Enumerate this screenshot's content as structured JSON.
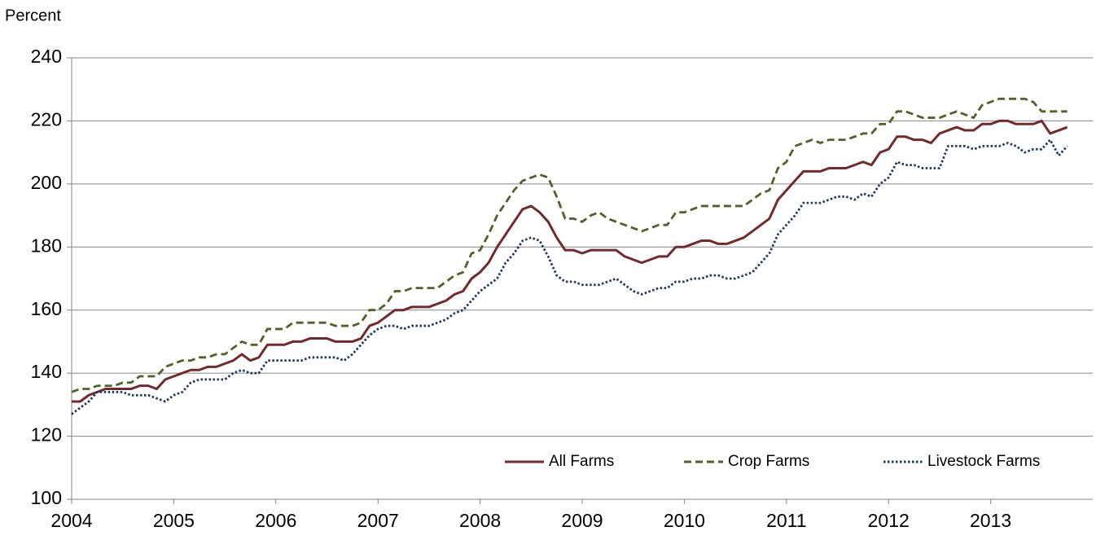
{
  "chart_data": {
    "type": "line",
    "y_label": "Percent",
    "x": [
      2004,
      2004.083,
      2004.167,
      2004.25,
      2004.333,
      2004.417,
      2004.5,
      2004.583,
      2004.667,
      2004.75,
      2004.833,
      2004.917,
      2005,
      2005.083,
      2005.167,
      2005.25,
      2005.333,
      2005.417,
      2005.5,
      2005.583,
      2005.667,
      2005.75,
      2005.833,
      2005.917,
      2006,
      2006.083,
      2006.167,
      2006.25,
      2006.333,
      2006.417,
      2006.5,
      2006.583,
      2006.667,
      2006.75,
      2006.833,
      2006.917,
      2007,
      2007.083,
      2007.167,
      2007.25,
      2007.333,
      2007.417,
      2007.5,
      2007.583,
      2007.667,
      2007.75,
      2007.833,
      2007.917,
      2008,
      2008.083,
      2008.167,
      2008.25,
      2008.333,
      2008.417,
      2008.5,
      2008.583,
      2008.667,
      2008.75,
      2008.833,
      2008.917,
      2009,
      2009.083,
      2009.167,
      2009.25,
      2009.333,
      2009.417,
      2009.5,
      2009.583,
      2009.667,
      2009.75,
      2009.833,
      2009.917,
      2010,
      2010.083,
      2010.167,
      2010.25,
      2010.333,
      2010.417,
      2010.5,
      2010.583,
      2010.667,
      2010.75,
      2010.833,
      2010.917,
      2011,
      2011.083,
      2011.167,
      2011.25,
      2011.333,
      2011.417,
      2011.5,
      2011.583,
      2011.667,
      2011.75,
      2011.833,
      2011.917,
      2012,
      2012.083,
      2012.167,
      2012.25,
      2012.333,
      2012.417,
      2012.5,
      2012.583,
      2012.667,
      2012.75,
      2012.833,
      2012.917,
      2013,
      2013.083,
      2013.167,
      2013.25,
      2013.333,
      2013.417,
      2013.5,
      2013.583,
      2013.667,
      2013.75
    ],
    "series": [
      {
        "name": "All Farms",
        "color": "#722a2a",
        "dash": "solid",
        "values": [
          131,
          131,
          133,
          134,
          135,
          135,
          135,
          135,
          136,
          136,
          135,
          138,
          139,
          140,
          141,
          141,
          142,
          142,
          143,
          144,
          146,
          144,
          145,
          149,
          149,
          149,
          150,
          150,
          151,
          151,
          151,
          150,
          150,
          150,
          151,
          155,
          156,
          158,
          160,
          160,
          161,
          161,
          161,
          162,
          163,
          165,
          166,
          170,
          172,
          175,
          180,
          184,
          188,
          192,
          193,
          191,
          188,
          183,
          179,
          179,
          178,
          179,
          179,
          179,
          179,
          177,
          176,
          175,
          176,
          177,
          177,
          180,
          180,
          181,
          182,
          182,
          181,
          181,
          182,
          183,
          185,
          187,
          189,
          195,
          198,
          201,
          204,
          204,
          204,
          205,
          205,
          205,
          206,
          207,
          206,
          210,
          211,
          215,
          215,
          214,
          214,
          213,
          216,
          217,
          218,
          217,
          217,
          219,
          219,
          220,
          220,
          219,
          219,
          219,
          220,
          216,
          217,
          218
        ]
      },
      {
        "name": "Crop Farms",
        "color": "#4f6228",
        "dash": "dashed",
        "values": [
          134,
          135,
          135,
          136,
          136,
          136,
          137,
          137,
          139,
          139,
          139,
          142,
          143,
          144,
          144,
          145,
          145,
          146,
          146,
          148,
          150,
          149,
          149,
          154,
          154,
          154,
          156,
          156,
          156,
          156,
          156,
          155,
          155,
          155,
          156,
          160,
          160,
          162,
          166,
          166,
          167,
          167,
          167,
          167,
          169,
          171,
          172,
          178,
          179,
          184,
          190,
          194,
          198,
          201,
          202,
          203,
          202,
          196,
          189,
          189,
          188,
          190,
          191,
          189,
          188,
          187,
          186,
          185,
          186,
          187,
          187,
          191,
          191,
          192,
          193,
          193,
          193,
          193,
          193,
          193,
          195,
          197,
          198,
          205,
          207,
          212,
          213,
          214,
          213,
          214,
          214,
          214,
          215,
          216,
          216,
          219,
          219,
          223,
          223,
          222,
          221,
          221,
          221,
          222,
          223,
          222,
          221,
          225,
          226,
          227,
          227,
          227,
          227,
          226,
          223,
          223,
          223,
          223
        ]
      },
      {
        "name": "Livestock Farms",
        "color": "#1f3864",
        "dash": "dotted",
        "values": [
          127,
          129,
          131,
          134,
          134,
          134,
          134,
          133,
          133,
          133,
          132,
          131,
          133,
          134,
          137,
          138,
          138,
          138,
          138,
          140,
          141,
          140,
          140,
          144,
          144,
          144,
          144,
          144,
          145,
          145,
          145,
          145,
          144,
          146,
          149,
          152,
          154,
          155,
          155,
          154,
          155,
          155,
          155,
          156,
          157,
          159,
          160,
          163,
          166,
          168,
          170,
          175,
          178,
          182,
          183,
          182,
          177,
          171,
          169,
          169,
          168,
          168,
          168,
          169,
          170,
          168,
          166,
          165,
          166,
          167,
          167,
          169,
          169,
          170,
          170,
          171,
          171,
          170,
          170,
          171,
          172,
          175,
          178,
          184,
          187,
          190,
          194,
          194,
          194,
          195,
          196,
          196,
          195,
          197,
          196,
          200,
          202,
          207,
          206,
          206,
          205,
          205,
          205,
          212,
          212,
          212,
          211,
          212,
          212,
          212,
          213,
          212,
          210,
          211,
          211,
          214,
          209,
          212
        ]
      }
    ],
    "xlim": [
      2004,
      2014
    ],
    "xticks": [
      2004,
      2005,
      2006,
      2007,
      2008,
      2009,
      2010,
      2011,
      2012,
      2013
    ],
    "ylim": [
      100,
      240
    ],
    "yticks": [
      100,
      120,
      140,
      160,
      180,
      200,
      220,
      240
    ],
    "grid": true,
    "legend": "lower right"
  }
}
